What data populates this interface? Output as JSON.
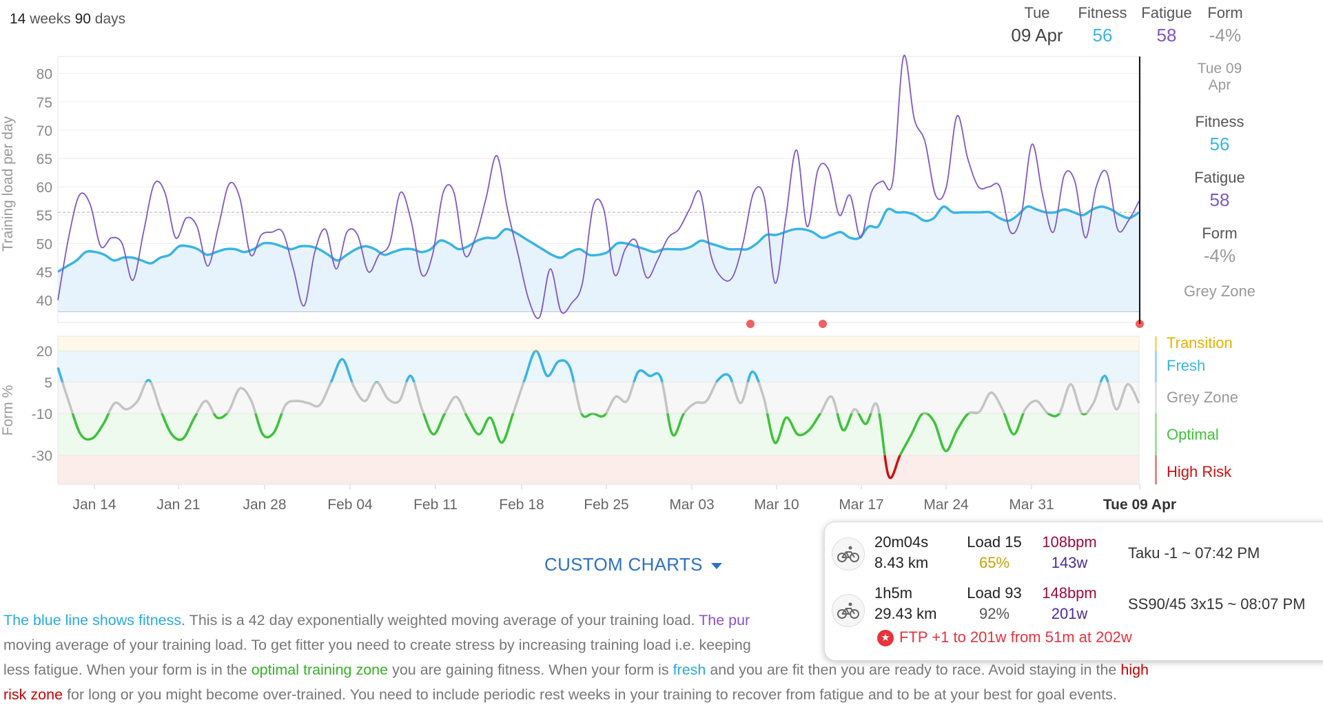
{
  "header": {
    "range_weeks_num": "14",
    "range_weeks_unit": "weeks",
    "range_days_num": "90",
    "range_days_unit": "days",
    "day_name": "Tue",
    "date": "09 Apr",
    "fitness_label": "Fitness",
    "fitness_value": "56",
    "fatigue_label": "Fatigue",
    "fatigue_value": "58",
    "form_label": "Form",
    "form_value": "-4%"
  },
  "side_panel": {
    "date_line1": "Tue 09",
    "date_line2": "Apr",
    "fitness_label": "Fitness",
    "fitness_value": "56",
    "fatigue_label": "Fatigue",
    "fatigue_value": "58",
    "form_label": "Form",
    "form_value": "-4%",
    "zone": "Grey Zone"
  },
  "colors": {
    "fitness": "#3ab4e2",
    "fatigue": "#7f56c8",
    "optimal": "#3ec13a",
    "high_risk": "#cc1010",
    "transition": "#e8b000",
    "grey": "#c4c4c4"
  },
  "chart_data": [
    {
      "type": "line",
      "ylabel": "Training load per day",
      "ylim": [
        38,
        83
      ],
      "yticks": [
        40,
        45,
        50,
        55,
        60,
        65,
        70,
        75,
        80
      ],
      "x_start": "Jan 10",
      "x_end": "Tue 09 Apr",
      "xtick_labels": [
        "Jan 14",
        "Jan 21",
        "Jan 28",
        "Feb 04",
        "Feb 11",
        "Feb 18",
        "Feb 25",
        "Mar 03",
        "Mar 10",
        "Mar 17",
        "Mar 24",
        "Mar 31",
        "Tue 09 Apr"
      ],
      "series": [
        {
          "name": "Fitness",
          "values": [
            45,
            46,
            47,
            48.5,
            48.5,
            48,
            47,
            47.5,
            47.5,
            47,
            46.5,
            47.5,
            48,
            49.5,
            49.5,
            49,
            48,
            48.5,
            49,
            49,
            48.5,
            49,
            50,
            50,
            49.5,
            49,
            49.5,
            49.5,
            49,
            48,
            47,
            48,
            49,
            49.5,
            49,
            48,
            48.5,
            49,
            49,
            48.5,
            49,
            50.5,
            50,
            49,
            49.5,
            50.5,
            51,
            51,
            52.5,
            52,
            51,
            50,
            49,
            48,
            47.5,
            48.5,
            49,
            48,
            48,
            48.5,
            50,
            50,
            49.5,
            49,
            48.5,
            49,
            49,
            49,
            49.5,
            50.5,
            50,
            49.5,
            49,
            49,
            49,
            50,
            51.5,
            51.5,
            52,
            52.5,
            52.5,
            52,
            51,
            51.5,
            52,
            51,
            51,
            53,
            53,
            56,
            55.5,
            55.5,
            55,
            54,
            54.5,
            56.5,
            55.5,
            55.5,
            55.5,
            55.5,
            55.5,
            54.5,
            54,
            55,
            56.5,
            56,
            55.5,
            55.5,
            56,
            55.5,
            55,
            56,
            56.5,
            56,
            55,
            54.5,
            55.5
          ]
        },
        {
          "name": "Fatigue",
          "values": [
            40,
            51,
            58.5,
            57,
            49.5,
            51,
            50,
            43.5,
            52,
            60.5,
            59,
            51,
            54.5,
            53,
            46,
            53,
            60.5,
            58,
            48,
            51.5,
            52,
            52,
            45.5,
            39,
            48.5,
            52.5,
            45.5,
            52,
            51.5,
            45,
            48,
            50,
            59,
            54,
            44.5,
            48,
            59,
            59,
            48,
            51,
            58,
            65.5,
            56,
            48,
            40,
            37,
            45.5,
            38,
            39.5,
            43,
            56.5,
            56,
            44.5,
            49,
            50.5,
            44,
            47,
            51,
            52.5,
            56,
            59,
            48,
            44,
            44,
            50,
            59,
            58,
            43,
            54.5,
            66.5,
            53,
            63,
            63,
            55,
            58.5,
            51,
            59,
            61,
            61,
            83,
            72,
            68,
            58.5,
            60,
            72.5,
            65,
            60,
            60,
            60,
            52,
            55,
            67.5,
            58.5,
            52,
            62,
            61,
            51,
            60,
            62.5,
            52.5,
            54,
            57.5
          ],
          "note": "sparse points spaced evenly across the x range"
        }
      ],
      "reference_line": 55.5,
      "event_markers": [
        "Mar 08",
        "Mar 13",
        "Tue 09 Apr"
      ]
    },
    {
      "type": "line",
      "ylabel": "Form %",
      "yticks": [
        20,
        5,
        -10,
        -30
      ],
      "ylim": [
        -44,
        27
      ],
      "legend": [
        "Transition",
        "Fresh",
        "Grey Zone",
        "Optimal",
        "High Risk"
      ],
      "zones": [
        {
          "name": "Transition",
          "from": 20,
          "to": 27
        },
        {
          "name": "Fresh",
          "from": 5,
          "to": 20
        },
        {
          "name": "Grey Zone",
          "from": -10,
          "to": 5
        },
        {
          "name": "Optimal",
          "from": -30,
          "to": -10
        },
        {
          "name": "High Risk",
          "from": -44,
          "to": -30
        }
      ],
      "series": [
        {
          "name": "Form",
          "values": [
            12,
            -5,
            -20,
            -22,
            -15,
            -5,
            -8,
            -4,
            6,
            -8,
            -20,
            -22,
            -12,
            -4,
            -12,
            -9,
            2,
            -4,
            -20,
            -19,
            -6,
            -4,
            -5,
            -6,
            5,
            16,
            3,
            -4,
            5,
            -3,
            -4,
            8,
            -8,
            -20,
            -10,
            -2,
            -12,
            -20,
            -12,
            -24,
            -10,
            6,
            20,
            8,
            15,
            12,
            -10,
            -10,
            -11,
            -2,
            -4,
            10,
            8,
            7,
            -20,
            -10,
            -5,
            -4,
            6,
            8,
            -5,
            10,
            -2,
            -24,
            -12,
            -20,
            -18,
            -10,
            -2,
            -18,
            -8,
            -15,
            -6,
            -40,
            -30,
            -20,
            -10,
            -14,
            -28,
            -18,
            -10,
            -9,
            0,
            -8,
            -20,
            -8,
            -4,
            -10,
            -10,
            4,
            -10,
            -5,
            8,
            -8,
            4,
            -5
          ],
          "note": "sparse points spaced evenly across the x range"
        }
      ]
    }
  ],
  "custom_charts_label": "CUSTOM CHARTS",
  "description": {
    "p1": "The blue line shows fitness",
    "p2": ". This is a 42 day exponentially weighted moving average of your training load. ",
    "p3": "The pur",
    "p4": "moving average of your training load. To get fitter you need to create stress by increasing training load i.e. keeping",
    "p5": "less fatigue. When your form is in the ",
    "p6": "optimal training zone",
    "p7": " you are gaining fitness. When your form is ",
    "p8": "fresh",
    "p9": " and you are fit then you are ready to race. Avoid staying in the ",
    "p10": "high",
    "p11": "risk zone",
    "p12": " for long or you might become over-trained. You need to include periodic rest weeks in your training to recover from fatigue and to be at your best for goal events."
  },
  "popup": {
    "activities": [
      {
        "duration": "20m04s",
        "distance": "8.43 km",
        "load_label": "Load",
        "load": "15",
        "intensity": "65%",
        "hr": "108bpm",
        "power": "143w",
        "name": "Taku -1 ~ 07:42 PM",
        "intensity_color": "#c8a000"
      },
      {
        "duration": "1h5m",
        "distance": "29.43 km",
        "load_label": "Load",
        "load": "93",
        "intensity": "92%",
        "hr": "148bpm",
        "power": "201w",
        "name": "SS90/45 3x15 ~ 08:07 PM",
        "intensity_color": "#555555"
      }
    ],
    "ftp_note": "FTP +1 to 201w from 51m at 202w",
    "hr_color": "#9a0b3a",
    "power_color": "#4a2a9a"
  }
}
